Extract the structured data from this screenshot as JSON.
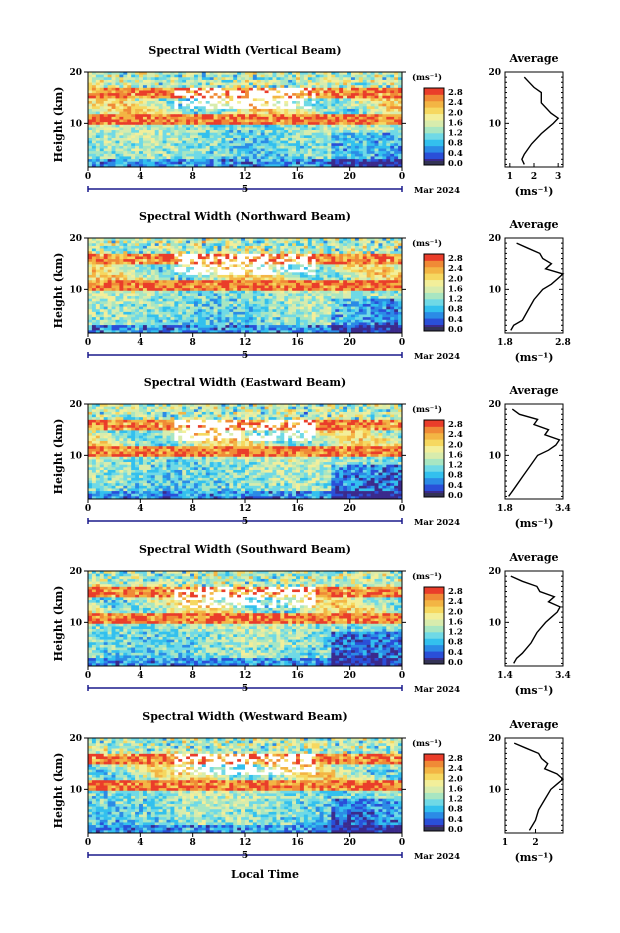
{
  "figure": {
    "xlabel_shared": "Local Time",
    "date_label": "Mar 2024",
    "day_label": "5",
    "colorbar_unit": "(ms⁻¹)",
    "colorbar_ticks": [
      "2.8",
      "2.4",
      "2.0",
      "1.6",
      "1.2",
      "0.8",
      "0.4",
      "0.0"
    ],
    "avg_title": "Average",
    "avg_unit": "(ms⁻¹)"
  },
  "chart_data": [
    {
      "type": "heatmap",
      "title": "Spectral Width (Vertical Beam)",
      "ylabel": "Height (km)",
      "x_ticks": [
        "0",
        "4",
        "8",
        "12",
        "16",
        "20",
        "0"
      ],
      "y_ticks": [
        "20",
        "10"
      ],
      "xlim": [
        0,
        24
      ],
      "ylim": [
        1.5,
        20
      ],
      "colorbar_range": [
        0.0,
        2.8
      ],
      "zero_color_bottom": true,
      "average_profile": {
        "xlim": [
          0.8,
          3.2
        ],
        "x_ticks": [
          "1",
          "2",
          "3"
        ],
        "values_height_km": [
          2,
          3,
          4,
          6,
          8,
          10,
          11,
          12,
          14,
          16,
          17,
          18,
          19
        ],
        "values_width": [
          1.6,
          1.5,
          1.6,
          1.9,
          2.3,
          2.8,
          3.0,
          2.7,
          2.3,
          2.3,
          2.0,
          1.8,
          1.6
        ]
      }
    },
    {
      "type": "heatmap",
      "title": "Spectral Width (Northward Beam)",
      "ylabel": "Height (km)",
      "x_ticks": [
        "0",
        "4",
        "8",
        "12",
        "16",
        "20",
        "0"
      ],
      "y_ticks": [
        "20",
        "10"
      ],
      "xlim": [
        0,
        24
      ],
      "ylim": [
        1.5,
        20
      ],
      "colorbar_range": [
        0.0,
        2.8
      ],
      "average_profile": {
        "xlim": [
          1.8,
          2.8
        ],
        "x_ticks": [
          "1.8",
          "2.8"
        ],
        "values_height_km": [
          2,
          3,
          4,
          6,
          8,
          10,
          11,
          12,
          13,
          14,
          15,
          16,
          17,
          18,
          19
        ],
        "values_width": [
          1.9,
          1.95,
          2.1,
          2.2,
          2.3,
          2.45,
          2.6,
          2.7,
          2.8,
          2.5,
          2.6,
          2.45,
          2.4,
          2.2,
          2.0
        ]
      }
    },
    {
      "type": "heatmap",
      "title": "Spectral Width (Eastward Beam)",
      "ylabel": "Height (km)",
      "x_ticks": [
        "0",
        "4",
        "8",
        "12",
        "16",
        "20",
        "0"
      ],
      "y_ticks": [
        "20",
        "10"
      ],
      "xlim": [
        0,
        24
      ],
      "ylim": [
        1.5,
        20
      ],
      "colorbar_range": [
        0.0,
        2.8
      ],
      "average_profile": {
        "xlim": [
          1.8,
          3.4
        ],
        "x_ticks": [
          "1.8",
          "3.4"
        ],
        "values_height_km": [
          2,
          3,
          4,
          6,
          8,
          10,
          11,
          12,
          13,
          14,
          15,
          16,
          17,
          18,
          19
        ],
        "values_width": [
          1.9,
          2.0,
          2.1,
          2.3,
          2.5,
          2.7,
          3.0,
          3.2,
          3.3,
          2.9,
          3.0,
          2.6,
          2.7,
          2.2,
          2.0
        ]
      }
    },
    {
      "type": "heatmap",
      "title": "Spectral Width (Southward Beam)",
      "ylabel": "Height (km)",
      "x_ticks": [
        "0",
        "4",
        "8",
        "12",
        "16",
        "20",
        "0"
      ],
      "y_ticks": [
        "20",
        "10"
      ],
      "xlim": [
        0,
        24
      ],
      "ylim": [
        1.5,
        20
      ],
      "colorbar_range": [
        0.0,
        2.8
      ],
      "average_profile": {
        "xlim": [
          1.4,
          3.4
        ],
        "x_ticks": [
          "1.4",
          "3.4"
        ],
        "values_height_km": [
          2,
          3,
          4,
          6,
          8,
          10,
          11,
          12,
          13,
          14,
          15,
          16,
          17,
          18,
          19
        ],
        "values_width": [
          1.7,
          1.8,
          2.0,
          2.3,
          2.5,
          2.8,
          3.0,
          3.2,
          3.3,
          2.9,
          3.1,
          2.6,
          2.5,
          2.0,
          1.6
        ]
      }
    },
    {
      "type": "heatmap",
      "title": "Spectral Width (Westward Beam)",
      "ylabel": "Height (km)",
      "x_ticks": [
        "0",
        "4",
        "8",
        "12",
        "16",
        "20",
        "0"
      ],
      "y_ticks": [
        "20",
        "10"
      ],
      "xlim": [
        0,
        24
      ],
      "ylim": [
        1.5,
        20
      ],
      "colorbar_range": [
        0.0,
        2.8
      ],
      "average_profile": {
        "xlim": [
          1.0,
          2.9
        ],
        "x_ticks": [
          "1",
          "2"
        ],
        "values_height_km": [
          2,
          3,
          4,
          6,
          8,
          10,
          11,
          12,
          13,
          14,
          15,
          16,
          17,
          18,
          19
        ],
        "values_width": [
          1.8,
          1.9,
          2.0,
          2.1,
          2.3,
          2.5,
          2.7,
          2.9,
          2.7,
          2.3,
          2.4,
          2.2,
          2.1,
          1.7,
          1.3
        ]
      }
    }
  ],
  "colors": {
    "scale": [
      "#3b2a8c",
      "#2a4fd8",
      "#2b8be6",
      "#33c0ee",
      "#6fd9e6",
      "#a8e6c2",
      "#d8ecad",
      "#f3ef9a",
      "#f6d860",
      "#f3b544",
      "#f08a36",
      "#ea3d2a"
    ]
  }
}
